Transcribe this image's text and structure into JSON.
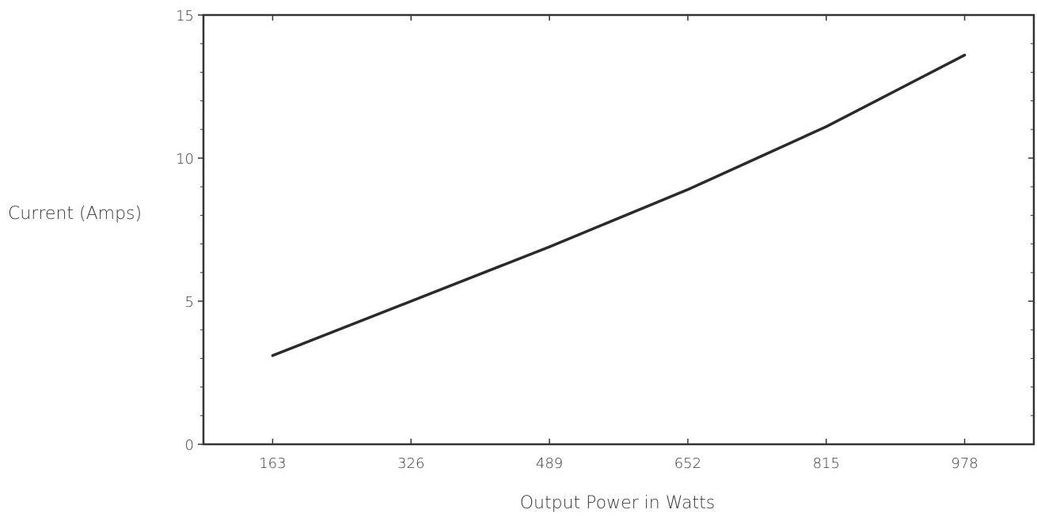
{
  "chart_data": {
    "type": "line",
    "title": "",
    "xlabel": "Output Power in Watts",
    "ylabel": "Current (Amps)",
    "x_ticks": [
      "163",
      "326",
      "489",
      "652",
      "815",
      "978"
    ],
    "y_ticks": [
      "0",
      "5",
      "10",
      "15"
    ],
    "xlim": [
      81.5,
      1059.5
    ],
    "ylim": [
      0,
      15
    ],
    "grid": false,
    "legend": "none",
    "series": [
      {
        "x": [
          163,
          326,
          489,
          652,
          815,
          978
        ],
        "y": [
          3.1,
          5.0,
          6.9,
          8.9,
          11.1,
          13.6
        ]
      }
    ],
    "colors": {
      "line": "#2a2a2a",
      "frame": "#333333",
      "text": "#3a3a3a"
    }
  }
}
